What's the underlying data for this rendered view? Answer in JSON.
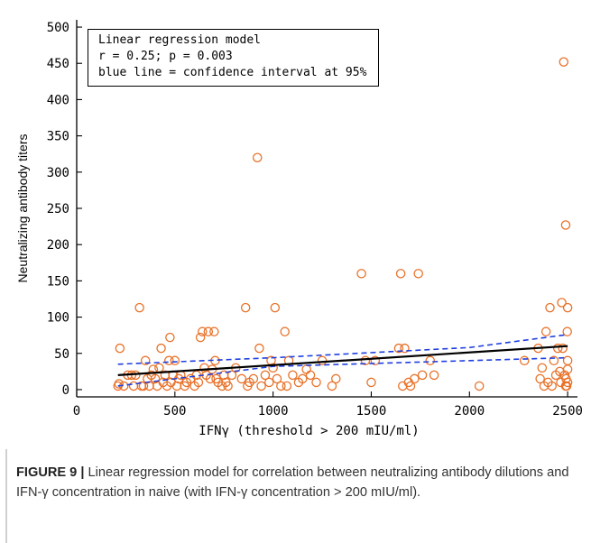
{
  "chart_data": {
    "type": "scatter",
    "xlabel": "IFNγ (threshold > 200 mIU/ml)",
    "ylabel": "Neutralizing antibody titers",
    "xlim": [
      0,
      2550
    ],
    "ylim": [
      -10,
      510
    ],
    "xticks": [
      0,
      500,
      1000,
      1500,
      2000,
      2500
    ],
    "yticks": [
      0,
      50,
      100,
      150,
      200,
      250,
      300,
      350,
      400,
      450,
      500
    ],
    "annotation": [
      "Linear regression model",
      "r = 0.25; p = 0.003",
      "blue line = confidence interval at 95%"
    ],
    "colors": {
      "points": "#e8722a",
      "regression": "#000000",
      "confidence": "#1f3fe0"
    },
    "regression_line": {
      "x": [
        210,
        2500
      ],
      "y": [
        20,
        60
      ]
    },
    "ci_upper": {
      "x": [
        210,
        1000,
        2000,
        2500
      ],
      "y": [
        35,
        44,
        58,
        76
      ]
    },
    "ci_lower": {
      "x": [
        210,
        1000,
        2000,
        2500
      ],
      "y": [
        5,
        32,
        40,
        44
      ]
    },
    "points": [
      [
        210,
        5
      ],
      [
        215,
        8
      ],
      [
        220,
        57
      ],
      [
        240,
        5
      ],
      [
        260,
        20
      ],
      [
        280,
        20
      ],
      [
        290,
        5
      ],
      [
        300,
        20
      ],
      [
        320,
        113
      ],
      [
        330,
        5
      ],
      [
        340,
        5
      ],
      [
        350,
        40
      ],
      [
        360,
        15
      ],
      [
        370,
        5
      ],
      [
        380,
        20
      ],
      [
        390,
        28
      ],
      [
        400,
        15
      ],
      [
        410,
        5
      ],
      [
        420,
        30
      ],
      [
        430,
        57
      ],
      [
        440,
        10
      ],
      [
        450,
        20
      ],
      [
        460,
        5
      ],
      [
        470,
        40
      ],
      [
        475,
        72
      ],
      [
        480,
        10
      ],
      [
        490,
        20
      ],
      [
        500,
        40
      ],
      [
        510,
        5
      ],
      [
        520,
        15
      ],
      [
        530,
        20
      ],
      [
        550,
        5
      ],
      [
        560,
        10
      ],
      [
        580,
        15
      ],
      [
        600,
        5
      ],
      [
        610,
        20
      ],
      [
        620,
        10
      ],
      [
        630,
        72
      ],
      [
        640,
        80
      ],
      [
        650,
        30
      ],
      [
        660,
        20
      ],
      [
        670,
        80
      ],
      [
        680,
        15
      ],
      [
        690,
        28
      ],
      [
        700,
        80
      ],
      [
        705,
        40
      ],
      [
        710,
        15
      ],
      [
        720,
        10
      ],
      [
        740,
        5
      ],
      [
        750,
        20
      ],
      [
        760,
        10
      ],
      [
        770,
        5
      ],
      [
        790,
        20
      ],
      [
        810,
        30
      ],
      [
        840,
        15
      ],
      [
        860,
        113
      ],
      [
        870,
        5
      ],
      [
        880,
        10
      ],
      [
        900,
        15
      ],
      [
        920,
        320
      ],
      [
        930,
        57
      ],
      [
        940,
        5
      ],
      [
        960,
        20
      ],
      [
        980,
        10
      ],
      [
        990,
        40
      ],
      [
        1000,
        30
      ],
      [
        1010,
        113
      ],
      [
        1020,
        15
      ],
      [
        1040,
        5
      ],
      [
        1060,
        80
      ],
      [
        1070,
        5
      ],
      [
        1080,
        40
      ],
      [
        1100,
        20
      ],
      [
        1130,
        10
      ],
      [
        1150,
        15
      ],
      [
        1170,
        28
      ],
      [
        1190,
        20
      ],
      [
        1220,
        10
      ],
      [
        1250,
        40
      ],
      [
        1300,
        5
      ],
      [
        1320,
        15
      ],
      [
        1450,
        160
      ],
      [
        1470,
        40
      ],
      [
        1500,
        10
      ],
      [
        1520,
        40
      ],
      [
        1640,
        57
      ],
      [
        1650,
        160
      ],
      [
        1660,
        5
      ],
      [
        1670,
        57
      ],
      [
        1690,
        10
      ],
      [
        1700,
        5
      ],
      [
        1720,
        15
      ],
      [
        1740,
        160
      ],
      [
        1760,
        20
      ],
      [
        1800,
        40
      ],
      [
        1820,
        20
      ],
      [
        2050,
        5
      ],
      [
        2280,
        40
      ],
      [
        2350,
        57
      ],
      [
        2360,
        15
      ],
      [
        2370,
        30
      ],
      [
        2380,
        5
      ],
      [
        2390,
        80
      ],
      [
        2400,
        10
      ],
      [
        2410,
        113
      ],
      [
        2420,
        5
      ],
      [
        2430,
        40
      ],
      [
        2440,
        20
      ],
      [
        2450,
        57
      ],
      [
        2460,
        25
      ],
      [
        2465,
        10
      ],
      [
        2470,
        120
      ],
      [
        2475,
        57
      ],
      [
        2480,
        452
      ],
      [
        2485,
        20
      ],
      [
        2490,
        227
      ],
      [
        2492,
        15
      ],
      [
        2495,
        5
      ],
      [
        2498,
        80
      ],
      [
        2500,
        113
      ],
      [
        2500,
        40
      ],
      [
        2500,
        28
      ],
      [
        2500,
        10
      ],
      [
        2490,
        5
      ]
    ]
  },
  "caption": {
    "label": "FIGURE 9 |",
    "text": " Linear regression model for correlation between neutralizing antibody dilutions and IFN-γ concentration in naive (with IFN-γ concentration > 200 mIU/ml)."
  }
}
